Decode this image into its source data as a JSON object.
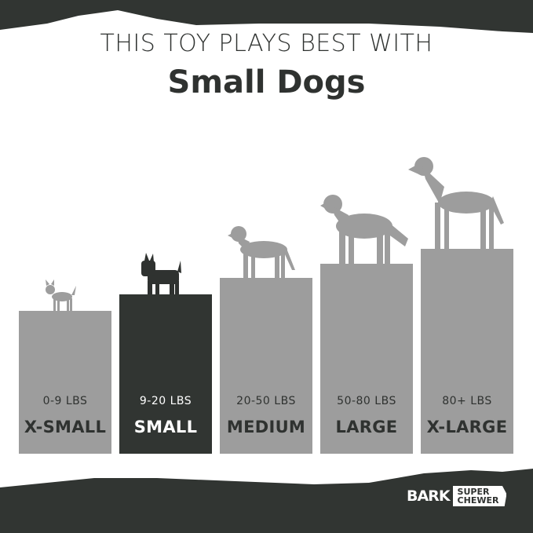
{
  "header": {
    "line1": "THIS TOY PLAYS BEST WITH",
    "line2": "Small Dogs"
  },
  "sizes": [
    {
      "weight": "0-9 LBS",
      "label": "X-SMALL",
      "active": false
    },
    {
      "weight": "9-20 LBS",
      "label": "SMALL",
      "active": true
    },
    {
      "weight": "20-50 LBS",
      "label": "MEDIUM",
      "active": false
    },
    {
      "weight": "50-80 LBS",
      "label": "LARGE",
      "active": false
    },
    {
      "weight": "80+ LBS",
      "label": "X-LARGE",
      "active": false
    }
  ],
  "logo": {
    "brand": "BARK",
    "tag_line1": "SUPER",
    "tag_line2": "CHEWER"
  },
  "colors": {
    "dark": "#313532",
    "bar": "#9d9d9d",
    "highlight": "#313532"
  }
}
